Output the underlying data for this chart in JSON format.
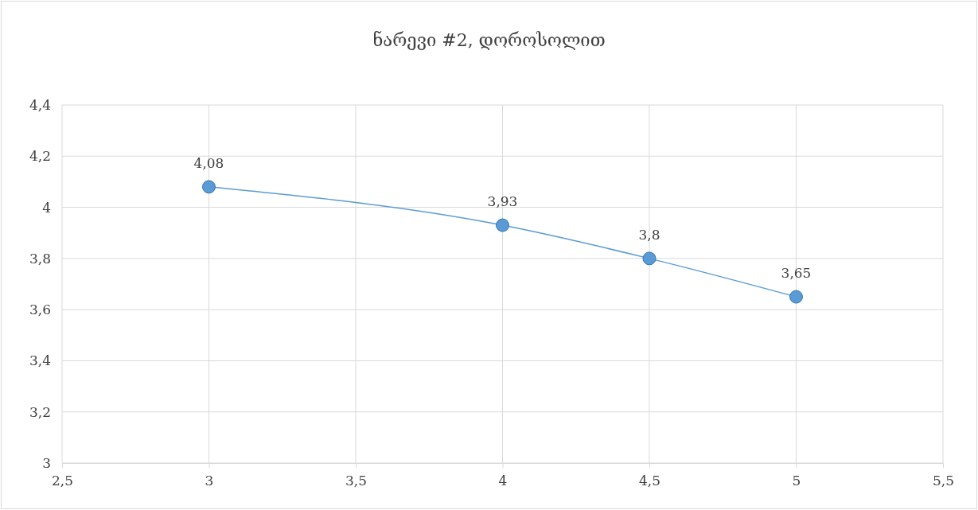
{
  "chart_data": {
    "type": "line",
    "title": "ნარევი #2, დოროსოლით",
    "x": [
      3,
      4,
      4.5,
      5
    ],
    "series": [
      {
        "color": "#5b9bd5",
        "values": [
          4.08,
          3.93,
          3.8,
          3.65
        ],
        "value_labels": [
          "4,08",
          "3,93",
          "3,8",
          "3,65"
        ]
      }
    ],
    "xlim": [
      2.5,
      5.5
    ],
    "xticks": [
      {
        "value": 2.5,
        "label": "2,5"
      },
      3,
      {
        "value": 3.5,
        "label": "3,5"
      },
      4,
      {
        "value": 4.5,
        "label": "4,5"
      },
      5,
      {
        "value": 5.5,
        "label": "5,5"
      }
    ],
    "ylim": [
      3,
      4.4
    ],
    "yticks": [
      3,
      {
        "value": 3.2,
        "label": "3,2"
      },
      {
        "value": 3.4,
        "label": "3,4"
      },
      {
        "value": 3.6,
        "label": "3,6"
      },
      {
        "value": 3.8,
        "label": "3,8"
      },
      4,
      {
        "value": 4.2,
        "label": "4,2"
      },
      {
        "value": 4.4,
        "label": "4,4"
      }
    ],
    "grid": true,
    "marker": "circle",
    "line_style": "solid"
  }
}
